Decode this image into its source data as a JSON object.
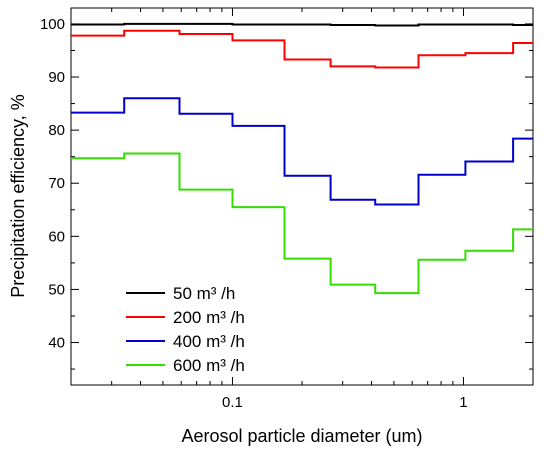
{
  "chart_data": {
    "type": "line",
    "title": "",
    "xlabel": "Aerosol particle diameter (um)",
    "ylabel": "Precipitation efficiency, %",
    "x_scale": "log",
    "xlim": [
      0.02,
      2.0
    ],
    "ylim": [
      32,
      103
    ],
    "x_ticks": [
      {
        "value": 0.1,
        "label": "0.1"
      },
      {
        "value": 1,
        "label": "1"
      }
    ],
    "y_ticks": [
      {
        "value": 40,
        "label": "40"
      },
      {
        "value": 50,
        "label": "50"
      },
      {
        "value": 60,
        "label": "60"
      },
      {
        "value": 70,
        "label": "70"
      },
      {
        "value": 80,
        "label": "80"
      },
      {
        "value": 90,
        "label": "90"
      },
      {
        "value": 100,
        "label": "100"
      }
    ],
    "grid": false,
    "legend_position": "bottom-left",
    "bin_edges": [
      0.02,
      0.034,
      0.059,
      0.1,
      0.168,
      0.266,
      0.415,
      0.639,
      1.02,
      1.64,
      2.0
    ],
    "series": [
      {
        "name": "50 m³ /h",
        "color": "#000000",
        "values": [
          99.9,
          100.0,
          100.0,
          99.9,
          99.9,
          99.8,
          99.7,
          99.9,
          99.9,
          99.8
        ]
      },
      {
        "name": "200 m³ /h",
        "color": "#ff0000",
        "values": [
          97.8,
          98.7,
          98.1,
          96.9,
          93.3,
          92.0,
          91.8,
          94.1,
          94.5,
          96.4
        ]
      },
      {
        "name": "400 m³ /h",
        "color": "#0000cc",
        "values": [
          83.3,
          86.0,
          83.1,
          80.8,
          71.4,
          66.9,
          66.0,
          71.6,
          74.1,
          78.4
        ]
      },
      {
        "name": "600 m³ /h",
        "color": "#33dd00",
        "values": [
          74.7,
          75.6,
          68.8,
          65.5,
          55.8,
          50.9,
          49.3,
          55.6,
          57.3,
          61.3
        ]
      }
    ]
  }
}
